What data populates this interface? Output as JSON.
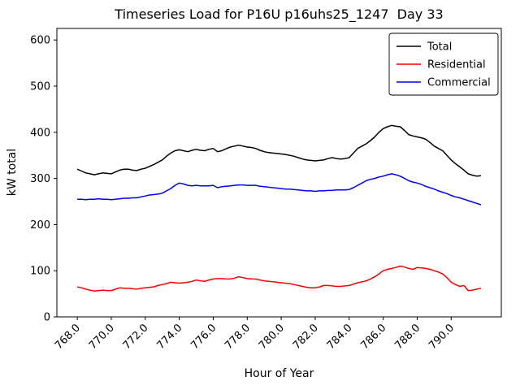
{
  "figure": {
    "title": "Timeseries Load for P16U p16uhs25_1247  Day 33",
    "xlabel": "Hour of Year",
    "ylabel": "kW total"
  },
  "chart_data": {
    "type": "line",
    "title": "Timeseries Load for P16U p16uhs25_1247  Day 33",
    "xlabel": "Hour of Year",
    "ylabel": "kW total",
    "xlim": [
      766.8,
      792.95
    ],
    "ylim": [
      0,
      625
    ],
    "xticks": [
      768,
      770,
      772,
      774,
      776,
      778,
      780,
      782,
      784,
      786,
      788,
      790
    ],
    "yticks": [
      0,
      100,
      200,
      300,
      400,
      500,
      600
    ],
    "grid": false,
    "legend_position": "upper right",
    "x": [
      768.0,
      768.25,
      768.5,
      768.75,
      769.0,
      769.25,
      769.5,
      769.75,
      770.0,
      770.25,
      770.5,
      770.75,
      771.0,
      771.25,
      771.5,
      771.75,
      772.0,
      772.25,
      772.5,
      772.75,
      773.0,
      773.25,
      773.5,
      773.75,
      774.0,
      774.25,
      774.5,
      774.75,
      775.0,
      775.25,
      775.5,
      775.75,
      776.0,
      776.25,
      776.5,
      776.75,
      777.0,
      777.25,
      777.5,
      777.75,
      778.0,
      778.25,
      778.5,
      778.75,
      779.0,
      779.25,
      779.5,
      779.75,
      780.0,
      780.25,
      780.5,
      780.75,
      781.0,
      781.25,
      781.5,
      781.75,
      782.0,
      782.25,
      782.5,
      782.75,
      783.0,
      783.25,
      783.5,
      783.75,
      784.0,
      784.25,
      784.5,
      784.75,
      785.0,
      785.25,
      785.5,
      785.75,
      786.0,
      786.25,
      786.5,
      786.75,
      787.0,
      787.25,
      787.5,
      787.75,
      788.0,
      788.25,
      788.5,
      788.75,
      789.0,
      789.25,
      789.5,
      789.75,
      790.0,
      790.25,
      790.5,
      790.75,
      791.0,
      791.25,
      791.5,
      791.75
    ],
    "series": [
      {
        "name": "Total",
        "color": "#000000",
        "values": [
          320,
          316,
          312,
          310,
          308,
          310,
          312,
          311,
          310,
          314,
          318,
          320,
          320,
          318,
          317,
          320,
          322,
          326,
          330,
          335,
          340,
          348,
          355,
          360,
          362,
          360,
          358,
          361,
          363,
          361,
          360,
          363,
          365,
          358,
          360,
          364,
          368,
          370,
          372,
          370,
          368,
          367,
          365,
          361,
          358,
          356,
          355,
          354,
          353,
          352,
          350,
          348,
          345,
          342,
          340,
          339,
          338,
          339,
          340,
          343,
          345,
          343,
          342,
          343,
          345,
          355,
          365,
          370,
          375,
          382,
          390,
          400,
          408,
          412,
          415,
          413,
          412,
          404,
          395,
          392,
          390,
          388,
          385,
          378,
          370,
          365,
          360,
          350,
          340,
          332,
          325,
          318,
          310,
          307,
          305,
          306
        ]
      },
      {
        "name": "Residential",
        "color": "#ff0000",
        "values": [
          65,
          63,
          60,
          58,
          56,
          57,
          58,
          57,
          57,
          60,
          63,
          62,
          62,
          61,
          60,
          62,
          63,
          64,
          65,
          68,
          70,
          72,
          75,
          74,
          73,
          74,
          75,
          77,
          80,
          78,
          77,
          80,
          82,
          83,
          83,
          82,
          82,
          84,
          87,
          85,
          83,
          82,
          82,
          80,
          78,
          77,
          76,
          75,
          74,
          73,
          72,
          70,
          68,
          66,
          64,
          63,
          63,
          65,
          68,
          68,
          67,
          66,
          66,
          67,
          68,
          71,
          74,
          76,
          78,
          82,
          87,
          93,
          100,
          103,
          105,
          107,
          110,
          108,
          105,
          103,
          107,
          106,
          105,
          103,
          100,
          97,
          93,
          85,
          75,
          70,
          66,
          68,
          57,
          58,
          60,
          62
        ]
      },
      {
        "name": "Commercial",
        "color": "#0000ff",
        "values": [
          255,
          255,
          254,
          255,
          255,
          256,
          255,
          255,
          254,
          255,
          256,
          257,
          257,
          258,
          258,
          260,
          262,
          264,
          265,
          266,
          268,
          273,
          278,
          285,
          290,
          288,
          285,
          284,
          285,
          284,
          284,
          284,
          285,
          280,
          282,
          283,
          284,
          285,
          286,
          286,
          285,
          285,
          285,
          283,
          282,
          281,
          280,
          279,
          278,
          277,
          277,
          276,
          275,
          274,
          273,
          273,
          272,
          273,
          273,
          274,
          274,
          275,
          275,
          275,
          276,
          280,
          285,
          290,
          295,
          298,
          300,
          303,
          305,
          308,
          310,
          308,
          305,
          300,
          295,
          292,
          290,
          287,
          283,
          280,
          277,
          273,
          270,
          267,
          263,
          260,
          258,
          255,
          252,
          249,
          246,
          243
        ]
      }
    ]
  }
}
